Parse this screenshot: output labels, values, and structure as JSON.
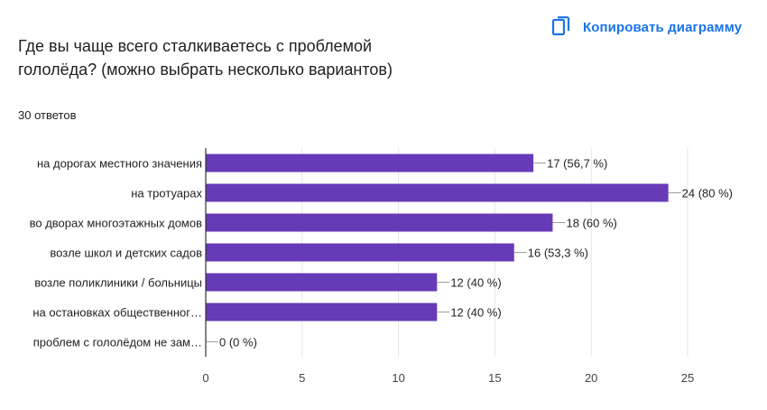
{
  "header": {
    "copy_label": "Копировать диаграмму",
    "copy_icon": "copy-icon",
    "accent_color": "#1a73e8"
  },
  "question": {
    "line1": "Где вы чаще всего сталкиваетесь с проблемой",
    "line2": "гололёда? (можно выбрать несколько вариантов)"
  },
  "answers_count": "30 ответов",
  "chart_data": {
    "type": "bar",
    "orientation": "horizontal",
    "categories": [
      "на дорогах местного значения",
      "на тротуарах",
      "во дворах многоэтажных домов",
      "возле школ и детских садов",
      "возле поликлиники / больницы",
      "на остановках общественног…",
      "проблем с гололёдом не зам…"
    ],
    "values": [
      17,
      24,
      18,
      16,
      12,
      12,
      0
    ],
    "value_labels": [
      "17 (56,7 %)",
      "24 (80 %)",
      "18 (60 %)",
      "16 (53,3 %)",
      "12 (40 %)",
      "12 (40 %)",
      "0 (0 %)"
    ],
    "xlim": [
      0,
      25
    ],
    "xticks": [
      "0",
      "5",
      "10",
      "15",
      "20",
      "25"
    ],
    "grid": true,
    "bar_color": "#673ab7"
  }
}
